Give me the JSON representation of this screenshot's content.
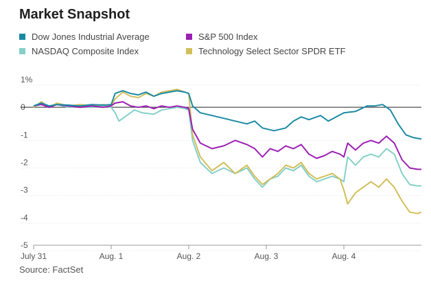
{
  "title": "Market Snapshot",
  "source": "Source: FactSet",
  "chart_data": {
    "type": "line",
    "title": "Market Snapshot",
    "xlabel": "",
    "ylabel": "",
    "y_unit": "%",
    "ylim": [
      -5,
      1
    ],
    "y_ticks": [
      1,
      0,
      -1,
      -2,
      -3,
      -4,
      -5
    ],
    "y_tick_labels": [
      "1%",
      "0",
      "-1",
      "-2",
      "-3",
      "-4",
      "-5"
    ],
    "x_ticks": [
      "July 31",
      "Aug. 1",
      "Aug. 2",
      "Aug. 3",
      "Aug. 4"
    ],
    "x_range": [
      0,
      5
    ],
    "grid": "horizontal",
    "zero_line": true,
    "legend_position": "top",
    "series": [
      {
        "name": "Dow Jones Industrial Average",
        "color": "#1a8aa4",
        "points": [
          [
            0,
            0.05
          ],
          [
            0.1,
            0.15
          ],
          [
            0.2,
            0.05
          ],
          [
            0.3,
            0.1
          ],
          [
            0.45,
            0.08
          ],
          [
            0.6,
            0.05
          ],
          [
            0.75,
            0.1
          ],
          [
            0.9,
            0.08
          ],
          [
            1.0,
            0.1
          ],
          [
            1.05,
            0.5
          ],
          [
            1.15,
            0.6
          ],
          [
            1.25,
            0.5
          ],
          [
            1.35,
            0.45
          ],
          [
            1.45,
            0.55
          ],
          [
            1.55,
            0.4
          ],
          [
            1.65,
            0.5
          ],
          [
            1.75,
            0.55
          ],
          [
            1.85,
            0.6
          ],
          [
            1.95,
            0.55
          ],
          [
            2.0,
            0.5
          ],
          [
            2.05,
            0.05
          ],
          [
            2.15,
            -0.2
          ],
          [
            2.3,
            -0.3
          ],
          [
            2.45,
            -0.4
          ],
          [
            2.6,
            -0.5
          ],
          [
            2.75,
            -0.6
          ],
          [
            2.85,
            -0.5
          ],
          [
            2.95,
            -0.75
          ],
          [
            3.1,
            -0.85
          ],
          [
            3.25,
            -0.75
          ],
          [
            3.35,
            -0.5
          ],
          [
            3.45,
            -0.35
          ],
          [
            3.55,
            -0.45
          ],
          [
            3.7,
            -0.3
          ],
          [
            3.8,
            -0.5
          ],
          [
            3.9,
            -0.35
          ],
          [
            4.0,
            -0.2
          ],
          [
            4.15,
            -0.15
          ],
          [
            4.3,
            0.05
          ],
          [
            4.4,
            0.05
          ],
          [
            4.5,
            0.1
          ],
          [
            4.6,
            -0.1
          ],
          [
            4.7,
            -0.6
          ],
          [
            4.8,
            -1.0
          ],
          [
            4.9,
            -1.1
          ],
          [
            5.0,
            -1.15
          ]
        ]
      },
      {
        "name": "S&P 500 Index",
        "color": "#9b1fb3",
        "points": [
          [
            0,
            0.05
          ],
          [
            0.1,
            0.1
          ],
          [
            0.2,
            0.0
          ],
          [
            0.3,
            0.1
          ],
          [
            0.45,
            0.05
          ],
          [
            0.6,
            0.0
          ],
          [
            0.75,
            0.05
          ],
          [
            0.9,
            0.0
          ],
          [
            1.0,
            0.05
          ],
          [
            1.05,
            0.15
          ],
          [
            1.15,
            0.2
          ],
          [
            1.25,
            0.05
          ],
          [
            1.35,
            0.0
          ],
          [
            1.45,
            0.05
          ],
          [
            1.55,
            -0.05
          ],
          [
            1.65,
            0.05
          ],
          [
            1.75,
            0.0
          ],
          [
            1.85,
            0.05
          ],
          [
            1.95,
            0.0
          ],
          [
            2.0,
            -0.05
          ],
          [
            2.05,
            -0.8
          ],
          [
            2.15,
            -1.3
          ],
          [
            2.3,
            -1.5
          ],
          [
            2.45,
            -1.4
          ],
          [
            2.6,
            -1.2
          ],
          [
            2.75,
            -1.35
          ],
          [
            2.85,
            -1.5
          ],
          [
            2.95,
            -1.8
          ],
          [
            3.05,
            -1.5
          ],
          [
            3.15,
            -1.6
          ],
          [
            3.25,
            -1.4
          ],
          [
            3.35,
            -1.5
          ],
          [
            3.45,
            -1.35
          ],
          [
            3.55,
            -1.7
          ],
          [
            3.65,
            -1.85
          ],
          [
            3.75,
            -1.75
          ],
          [
            3.85,
            -1.6
          ],
          [
            3.95,
            -1.7
          ],
          [
            4.0,
            -1.8
          ],
          [
            4.05,
            -1.3
          ],
          [
            4.15,
            -1.55
          ],
          [
            4.25,
            -1.3
          ],
          [
            4.35,
            -1.2
          ],
          [
            4.45,
            -1.3
          ],
          [
            4.55,
            -1.05
          ],
          [
            4.65,
            -1.3
          ],
          [
            4.75,
            -1.9
          ],
          [
            4.85,
            -2.2
          ],
          [
            4.95,
            -2.25
          ],
          [
            5.0,
            -2.25
          ]
        ]
      },
      {
        "name": "NASDAQ Composite Index",
        "color": "#85cfc9",
        "points": [
          [
            0,
            0.05
          ],
          [
            0.1,
            0.15
          ],
          [
            0.2,
            0.05
          ],
          [
            0.3,
            0.1
          ],
          [
            0.45,
            0.0
          ],
          [
            0.6,
            0.05
          ],
          [
            0.75,
            0.0
          ],
          [
            0.9,
            0.05
          ],
          [
            1.0,
            0.0
          ],
          [
            1.05,
            -0.2
          ],
          [
            1.1,
            -0.5
          ],
          [
            1.2,
            -0.3
          ],
          [
            1.3,
            -0.1
          ],
          [
            1.4,
            -0.2
          ],
          [
            1.55,
            -0.25
          ],
          [
            1.65,
            -0.1
          ],
          [
            1.75,
            -0.05
          ],
          [
            1.85,
            0.0
          ],
          [
            1.95,
            -0.05
          ],
          [
            2.0,
            -0.1
          ],
          [
            2.05,
            -1.2
          ],
          [
            2.15,
            -2.0
          ],
          [
            2.3,
            -2.4
          ],
          [
            2.45,
            -2.2
          ],
          [
            2.6,
            -2.4
          ],
          [
            2.75,
            -2.2
          ],
          [
            2.85,
            -2.6
          ],
          [
            2.95,
            -2.9
          ],
          [
            3.05,
            -2.6
          ],
          [
            3.15,
            -2.5
          ],
          [
            3.25,
            -2.2
          ],
          [
            3.35,
            -2.3
          ],
          [
            3.45,
            -2.1
          ],
          [
            3.55,
            -2.5
          ],
          [
            3.65,
            -2.7
          ],
          [
            3.75,
            -2.6
          ],
          [
            3.85,
            -2.5
          ],
          [
            3.95,
            -2.6
          ],
          [
            4.0,
            -2.7
          ],
          [
            4.05,
            -1.8
          ],
          [
            4.15,
            -2.1
          ],
          [
            4.25,
            -1.8
          ],
          [
            4.35,
            -1.7
          ],
          [
            4.45,
            -1.8
          ],
          [
            4.55,
            -1.5
          ],
          [
            4.65,
            -1.7
          ],
          [
            4.75,
            -2.4
          ],
          [
            4.85,
            -2.8
          ],
          [
            4.95,
            -2.85
          ],
          [
            5.0,
            -2.85
          ]
        ]
      },
      {
        "name": "Technology Select Sector SPDR ETF",
        "color": "#d2bf5a",
        "points": [
          [
            0,
            0.0
          ],
          [
            0.1,
            0.2
          ],
          [
            0.2,
            0.0
          ],
          [
            0.3,
            0.15
          ],
          [
            0.45,
            0.05
          ],
          [
            0.6,
            0.1
          ],
          [
            0.75,
            0.05
          ],
          [
            0.9,
            0.1
          ],
          [
            1.0,
            0.05
          ],
          [
            1.05,
            0.3
          ],
          [
            1.15,
            0.55
          ],
          [
            1.25,
            0.4
          ],
          [
            1.35,
            0.35
          ],
          [
            1.45,
            0.5
          ],
          [
            1.55,
            0.4
          ],
          [
            1.65,
            0.55
          ],
          [
            1.75,
            0.6
          ],
          [
            1.85,
            0.65
          ],
          [
            1.95,
            0.55
          ],
          [
            2.0,
            0.5
          ],
          [
            2.05,
            -1.0
          ],
          [
            2.15,
            -1.8
          ],
          [
            2.3,
            -2.3
          ],
          [
            2.45,
            -2.0
          ],
          [
            2.6,
            -2.4
          ],
          [
            2.75,
            -2.1
          ],
          [
            2.85,
            -2.5
          ],
          [
            2.95,
            -2.8
          ],
          [
            3.05,
            -2.6
          ],
          [
            3.15,
            -2.4
          ],
          [
            3.25,
            -2.1
          ],
          [
            3.35,
            -2.2
          ],
          [
            3.45,
            -2.0
          ],
          [
            3.55,
            -2.4
          ],
          [
            3.65,
            -2.6
          ],
          [
            3.75,
            -2.5
          ],
          [
            3.85,
            -2.4
          ],
          [
            3.95,
            -2.6
          ],
          [
            4.0,
            -3.0
          ],
          [
            4.05,
            -3.5
          ],
          [
            4.15,
            -3.1
          ],
          [
            4.25,
            -2.9
          ],
          [
            4.35,
            -2.7
          ],
          [
            4.45,
            -2.9
          ],
          [
            4.55,
            -2.6
          ],
          [
            4.65,
            -2.9
          ],
          [
            4.75,
            -3.4
          ],
          [
            4.85,
            -3.8
          ],
          [
            4.95,
            -3.85
          ],
          [
            5.0,
            -3.8
          ]
        ]
      }
    ]
  }
}
